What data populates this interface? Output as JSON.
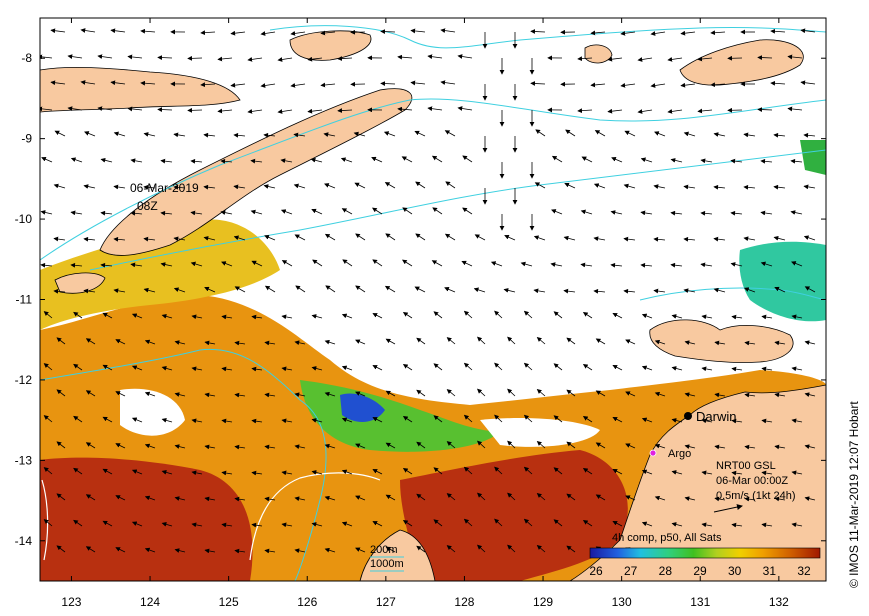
{
  "map": {
    "lon_ticks": [
      "123",
      "124",
      "125",
      "126",
      "127",
      "128",
      "129",
      "130",
      "131",
      "132"
    ],
    "lat_ticks": [
      "-8",
      "-9",
      "-10",
      "-11",
      "-12",
      "-13",
      "-14"
    ],
    "lon_range": [
      122.6,
      132.6
    ],
    "lat_range": [
      -14.5,
      -7.5
    ]
  },
  "labels": {
    "timestamp_date": "06-Mar-2019",
    "timestamp_hour": "08Z",
    "city": "Darwin",
    "argo": "Argo"
  },
  "current_legend": {
    "line1": "NRT00 GSL",
    "line2": "06-Mar 00:00Z",
    "line3": "0.5m/s (1kt 24h)"
  },
  "isobath_legend": {
    "shallow": "200m",
    "deep": "1000m"
  },
  "sst_legend": {
    "title": "4h comp, p50, All Sats",
    "ticks": [
      "26",
      "27",
      "28",
      "29",
      "30",
      "31",
      "32"
    ]
  },
  "credit": "© IMOS 11-Mar-2019 12:07 Hobart",
  "colors": {
    "land": "#f8c9a0",
    "isobath": "#3fd0e0",
    "argo": "#e020e0"
  }
}
